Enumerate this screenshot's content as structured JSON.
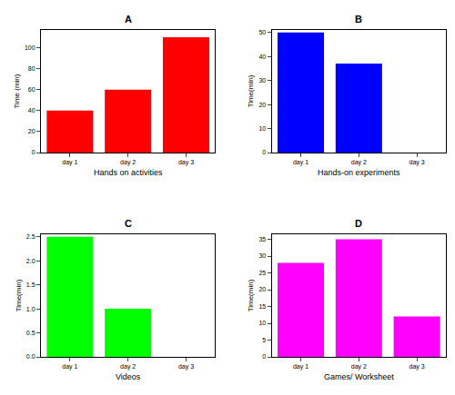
{
  "chart_data": [
    {
      "type": "bar",
      "title": "A",
      "categories": [
        "day 1",
        "day 2",
        "day 3"
      ],
      "values": [
        40,
        60,
        110
      ],
      "color": "#ff0000",
      "xlabel": "Hands on activities",
      "ylabel": "Time (min)",
      "ylim": [
        0,
        117
      ],
      "yticks": [
        0,
        20,
        40,
        60,
        80,
        100
      ],
      "grid": false
    },
    {
      "type": "bar",
      "title": "B",
      "categories": [
        "day 1",
        "day 2",
        "day 3"
      ],
      "values": [
        50,
        37,
        0
      ],
      "color": "#0000ff",
      "xlabel": "Hands-on experiments",
      "ylabel": "Time(min)",
      "ylim": [
        0,
        51
      ],
      "yticks": [
        0,
        10,
        20,
        30,
        40,
        50
      ],
      "grid": false
    },
    {
      "type": "bar",
      "title": "C",
      "categories": [
        "day 1",
        "day 2",
        "day 3"
      ],
      "values": [
        2.5,
        1.0,
        0
      ],
      "color": "#00ff00",
      "xlabel": "Videos",
      "ylabel": "Time(min)",
      "ylim": [
        0,
        2.55
      ],
      "yticks": [
        {
          "value": 0,
          "label": "0.0"
        },
        0.5,
        {
          "value": 1,
          "label": "1.0"
        },
        1.5,
        {
          "value": 2,
          "label": "2.0"
        },
        2.5
      ],
      "grid": false
    },
    {
      "type": "bar",
      "title": "D",
      "categories": [
        "day 1",
        "day 2",
        "day 3"
      ],
      "values": [
        28,
        35,
        12
      ],
      "color": "#ff00ff",
      "xlabel": "Games/ Worksheet",
      "ylabel": "Time(min)",
      "ylim": [
        0,
        36.5
      ],
      "yticks": [
        0,
        5,
        10,
        15,
        20,
        25,
        30,
        35
      ],
      "grid": false
    }
  ]
}
